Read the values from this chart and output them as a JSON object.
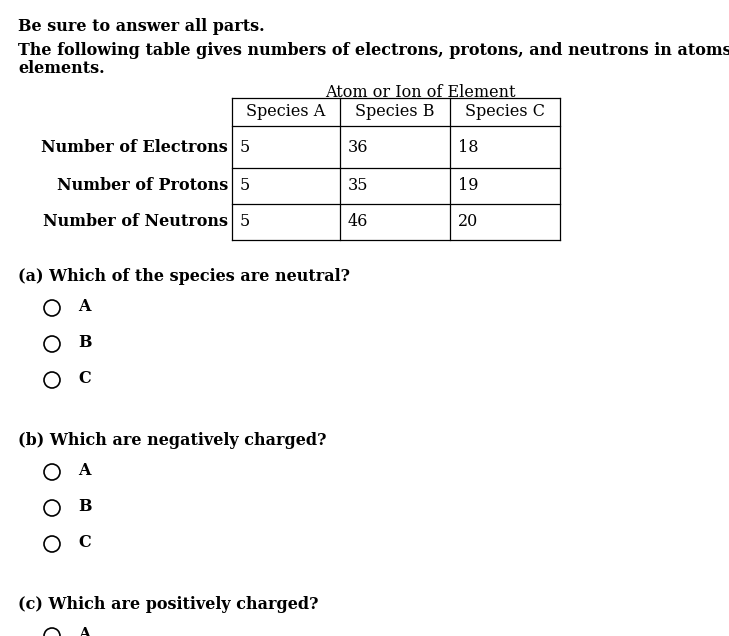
{
  "bg_color": "#ffffff",
  "bold_intro": "Be sure to answer all parts.",
  "intro_line1": "The following table gives numbers of electrons, protons, and neutrons in atoms or ions of a number of",
  "intro_line2": "elements.",
  "table_title": "Atom or Ion of Element",
  "table_headers": [
    "Species A",
    "Species B",
    "Species C"
  ],
  "table_row_labels": [
    "Number of Electrons",
    "Number of Protons",
    "Number of Neutrons"
  ],
  "table_data": [
    [
      "5",
      "36",
      "18"
    ],
    [
      "5",
      "35",
      "19"
    ],
    [
      "5",
      "46",
      "20"
    ]
  ],
  "questions": [
    "(a) Which of the species are neutral?",
    "(b) Which are negatively charged?",
    "(c) Which are positively charged?"
  ],
  "options": [
    "A",
    "B",
    "C"
  ],
  "font_size": 11.5,
  "font_family": "DejaVu Serif"
}
